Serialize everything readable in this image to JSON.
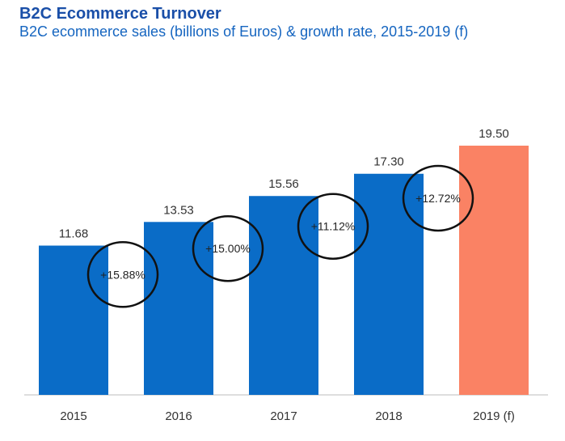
{
  "chart_data": {
    "type": "bar",
    "title": "B2C Ecommerce Turnover",
    "subtitle": "B2C ecommerce sales (billions of Euros) & growth rate, 2015-2019 (f)",
    "categories": [
      "2015",
      "2016",
      "2017",
      "2018",
      "2019 (f)"
    ],
    "values": [
      11.68,
      13.53,
      15.56,
      17.3,
      19.5
    ],
    "value_labels": [
      "11.68",
      "13.53",
      "15.56",
      "17.30",
      "19.50"
    ],
    "growth_rates": [
      "+15.88%",
      "+15.00%",
      "+11.12%",
      "+12.72%"
    ],
    "xlabel": "",
    "ylabel": "",
    "ylim": [
      0,
      19.5
    ],
    "colors": {
      "actual": "#0a6cc7",
      "forecast": "#fa8264",
      "circle": "#111111",
      "axis": "#bdbdbd",
      "title": "#1a4fa8",
      "subtitle": "#1565c0"
    }
  }
}
